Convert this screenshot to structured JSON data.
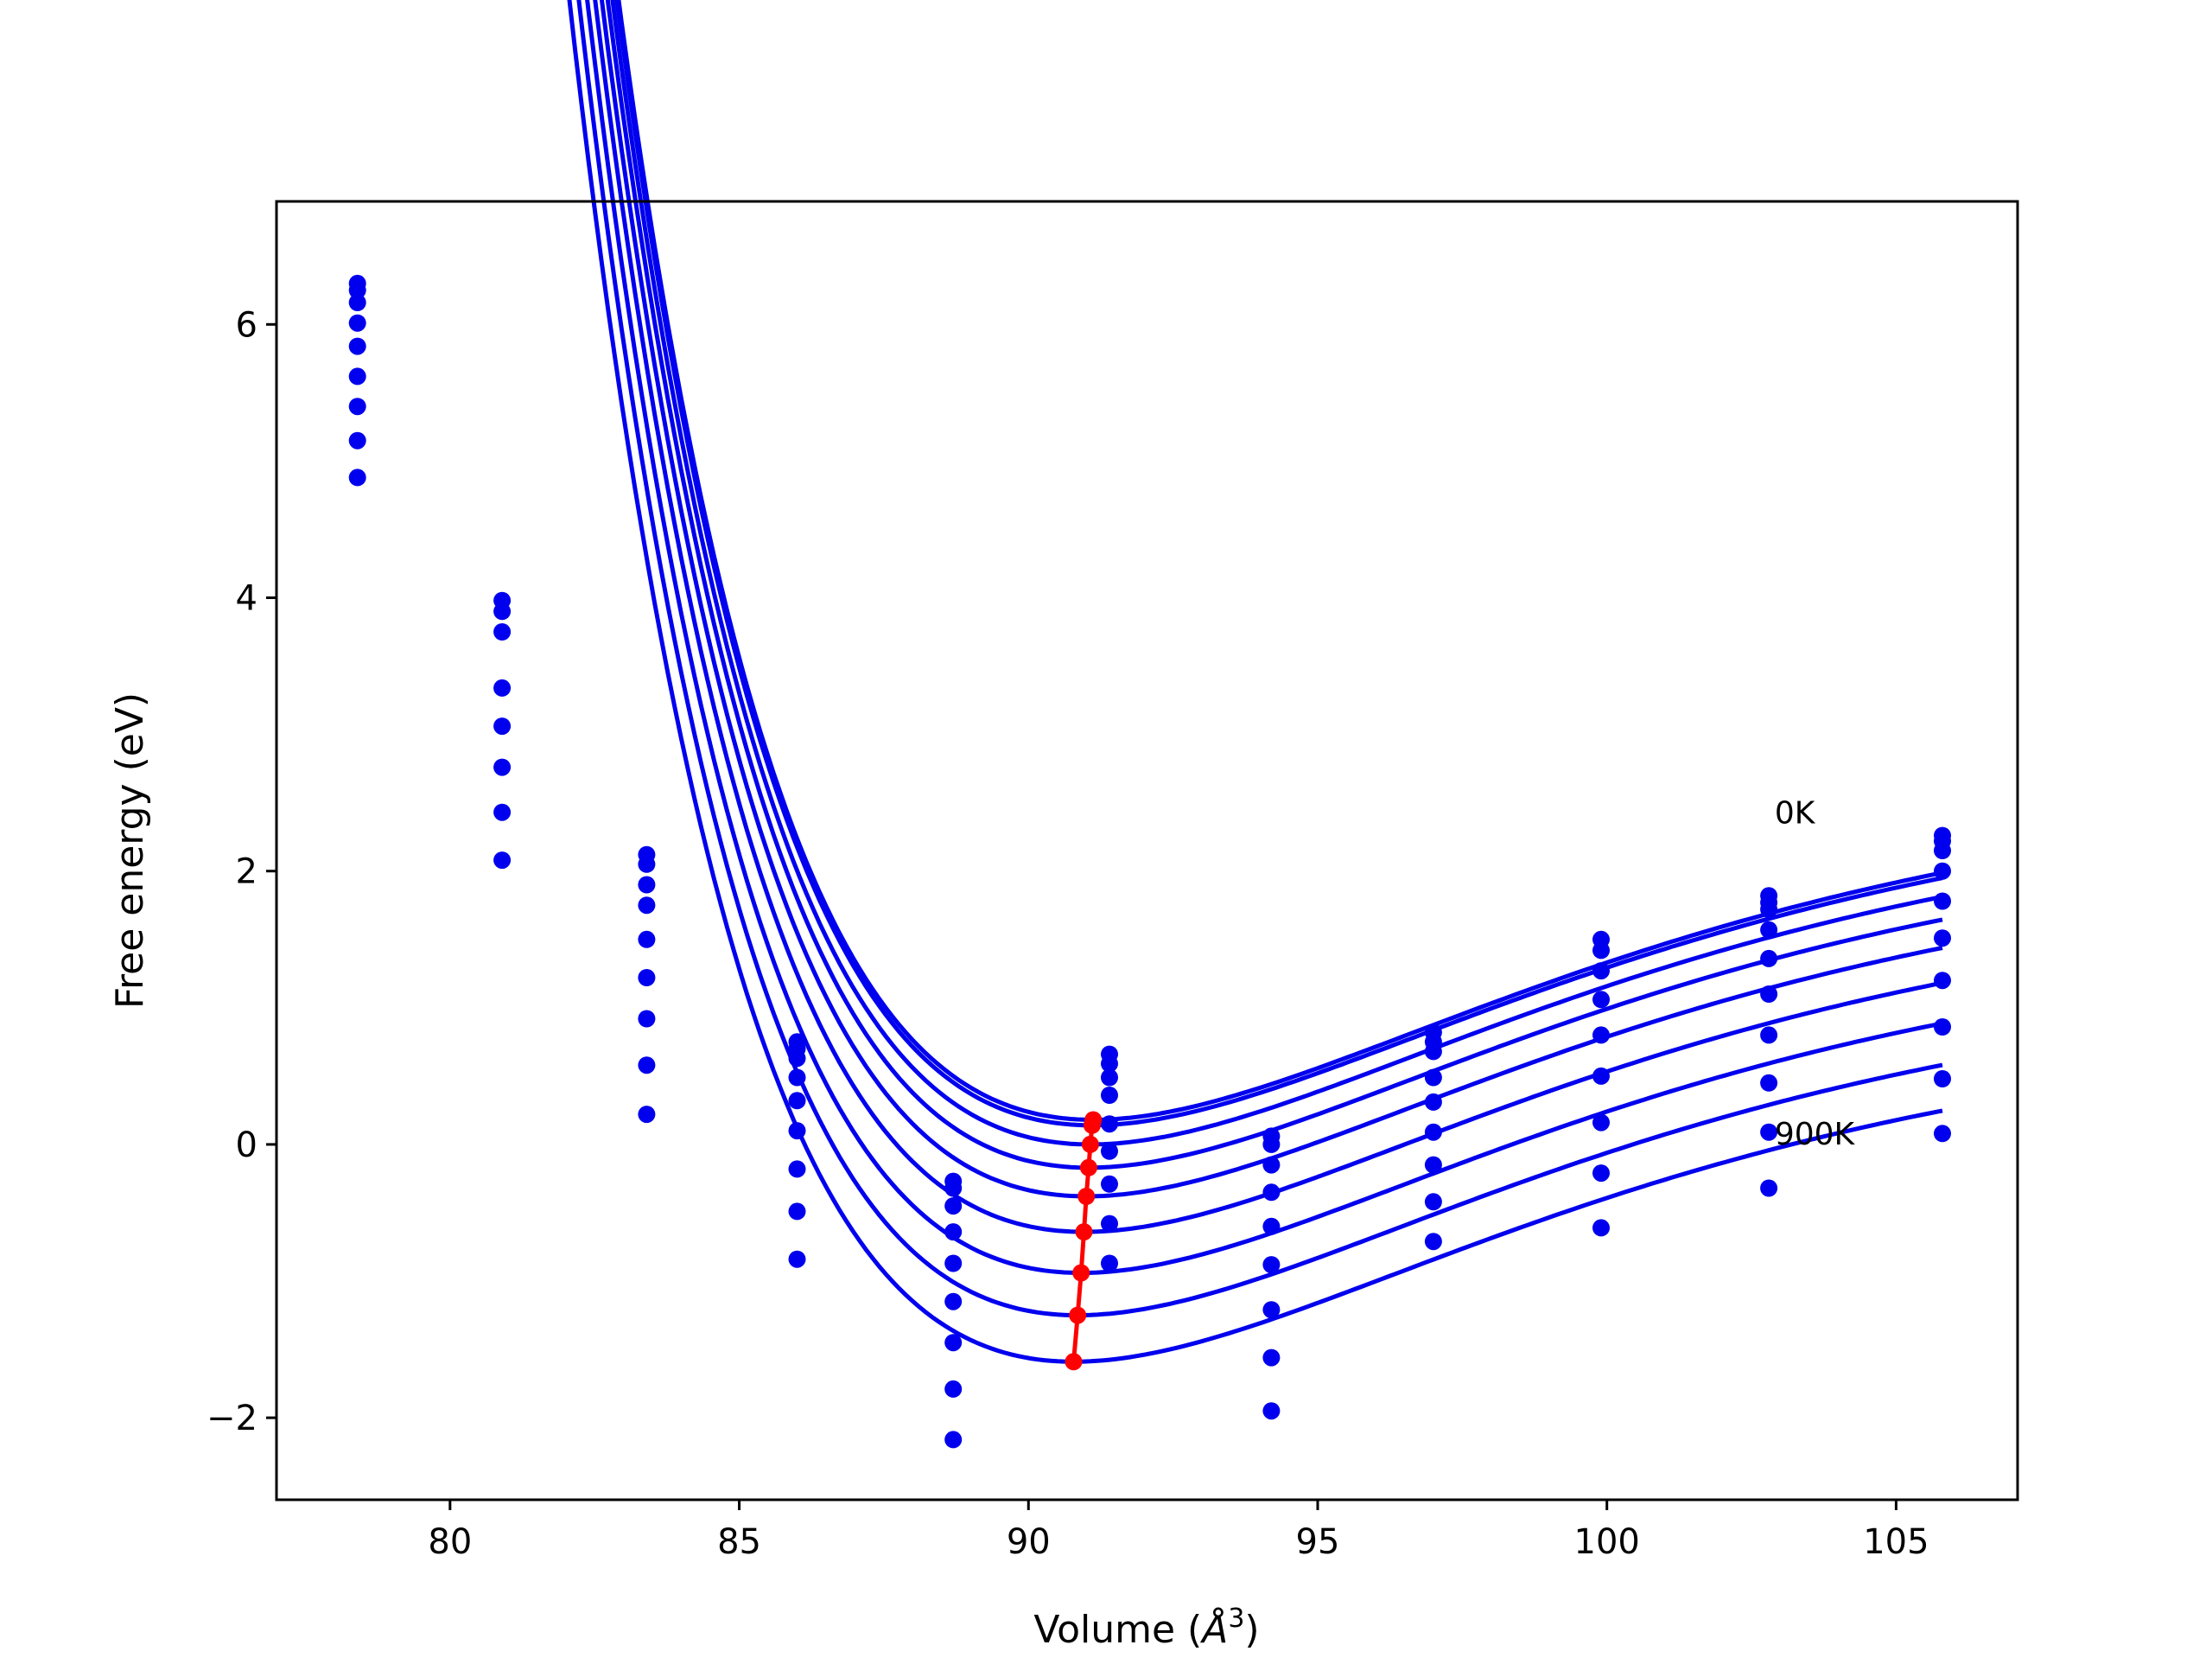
{
  "chart_data": {
    "type": "line",
    "xlabel": "Volume (",
    "xlabel_unit": "Å",
    "xlabel_sup": "3",
    "xlabel_close": ")",
    "ylabel": "Free energy (eV)",
    "xlim": [
      77,
      107.1
    ],
    "ylim": [
      -2.6,
      6.9
    ],
    "xticks": [
      80,
      85,
      90,
      95,
      100,
      105
    ],
    "xtick_labels": [
      "80",
      "85",
      "90",
      "95",
      "100",
      "105"
    ],
    "yticks": [
      -2,
      0,
      2,
      4,
      6
    ],
    "ytick_labels": [
      "−2",
      "0",
      "2",
      "4",
      "6"
    ],
    "grid": false,
    "curve_color": "#0000ee",
    "min_color": "#ff0000",
    "curve_x_range": [
      78.4,
      105.8
    ],
    "sample_volumes": [
      78.4,
      80.9,
      83.4,
      86.0,
      88.7,
      91.4,
      94.2,
      97.0,
      99.9,
      102.8,
      105.8
    ],
    "annotations": [
      {
        "text": "0K",
        "x": 102.9,
        "y": 2.35
      },
      {
        "text": "900K",
        "x": 102.9,
        "y": 0.0
      }
    ],
    "series": [
      {
        "min_volume": 91.12,
        "min_energy": 0.18,
        "curvature": 0.04,
        "decay": 0.125,
        "points": [
          6.3,
          3.98,
          2.12,
          0.75,
          -0.27,
          0.66,
          0.06,
          0.82,
          1.5,
          1.82,
          2.26
        ]
      },
      {
        "min_volume": 91.1,
        "min_energy": 0.14,
        "curvature": 0.04,
        "decay": 0.125,
        "points": [
          6.25,
          3.9,
          2.05,
          0.7,
          -0.32,
          0.59,
          0.0,
          0.75,
          1.42,
          1.77,
          2.22
        ]
      },
      {
        "min_volume": 91.07,
        "min_energy": 0.0,
        "curvature": 0.04,
        "decay": 0.125,
        "points": [
          6.16,
          3.75,
          1.9,
          0.63,
          -0.45,
          0.49,
          -0.15,
          0.68,
          1.27,
          1.72,
          2.15
        ]
      },
      {
        "min_volume": 91.04,
        "min_energy": -0.17,
        "curvature": 0.04,
        "decay": 0.125,
        "points": [
          6.01,
          3.34,
          1.75,
          0.49,
          -0.64,
          0.36,
          -0.35,
          0.49,
          1.06,
          1.57,
          2.0
        ]
      },
      {
        "min_volume": 91.0,
        "min_energy": -0.38,
        "curvature": 0.04,
        "decay": 0.125,
        "points": [
          5.84,
          3.06,
          1.5,
          0.32,
          -0.87,
          0.15,
          -0.6,
          0.31,
          0.8,
          1.36,
          1.78
        ]
      },
      {
        "min_volume": 90.96,
        "min_energy": -0.64,
        "curvature": 0.04,
        "decay": 0.125,
        "points": [
          5.62,
          2.76,
          1.22,
          0.1,
          -1.15,
          -0.05,
          -0.88,
          0.09,
          0.5,
          1.1,
          1.51
        ]
      },
      {
        "min_volume": 90.91,
        "min_energy": -0.94,
        "curvature": 0.04,
        "decay": 0.125,
        "points": [
          5.4,
          2.43,
          0.92,
          -0.18,
          -1.45,
          -0.29,
          -1.21,
          -0.15,
          0.16,
          0.8,
          1.2
        ]
      },
      {
        "min_volume": 90.85,
        "min_energy": -1.25,
        "curvature": 0.04,
        "decay": 0.125,
        "points": [
          5.15,
          2.08,
          0.58,
          -0.49,
          -1.79,
          -0.58,
          -1.56,
          -0.42,
          -0.21,
          0.45,
          0.86
        ]
      },
      {
        "min_volume": 90.78,
        "min_energy": -1.59,
        "curvature": 0.04,
        "decay": 0.125,
        "points": [
          4.88,
          null,
          0.22,
          -0.84,
          -2.16,
          -0.87,
          -1.95,
          -0.71,
          -0.61,
          0.09,
          0.48
        ]
      },
      {
        "min_volume": 105.8,
        "min_energy": null,
        "curvature": null,
        "decay": null,
        "points": [],
        "extra_point": {
          "x": 105.8,
          "y": 0.08
        }
      },
      {
        "min_volume": 102.8,
        "min_energy": null,
        "curvature": null,
        "decay": null,
        "points": [],
        "extra_point": {
          "x": 102.8,
          "y": -0.32
        }
      }
    ]
  }
}
